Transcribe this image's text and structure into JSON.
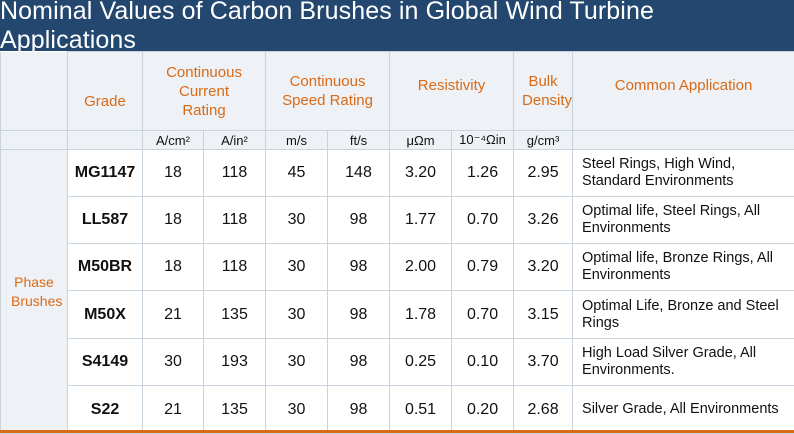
{
  "title": "Nominal Values of Carbon Brushes in Global Wind Turbine Applications",
  "headers": {
    "grade": "Grade",
    "current": "Continuous Current Rating",
    "speed": "Continuous Speed Rating",
    "resistivity": "Resistivity",
    "density": "Bulk Density",
    "application": "Common Application"
  },
  "units": [
    "A/cm²",
    "A/in²",
    "m/s",
    "ft/s",
    "μΩm",
    "10⁻⁴Ωin",
    "g/cm³"
  ],
  "row_group_label": "Phase Brushes",
  "rows": [
    {
      "grade": "MG1147",
      "a_cm2": "18",
      "a_in2": "118",
      "m_s": "45",
      "ft_s": "148",
      "uohm_m": "3.20",
      "ohm_in": "1.26",
      "density": "2.95",
      "application": "Steel Rings, High Wind, Standard Environments"
    },
    {
      "grade": "LL587",
      "a_cm2": "18",
      "a_in2": "118",
      "m_s": "30",
      "ft_s": "98",
      "uohm_m": "1.77",
      "ohm_in": "0.70",
      "density": "3.26",
      "application": "Optimal life, Steel Rings, All Environments"
    },
    {
      "grade": "M50BR",
      "a_cm2": "18",
      "a_in2": "118",
      "m_s": "30",
      "ft_s": "98",
      "uohm_m": "2.00",
      "ohm_in": "0.79",
      "density": "3.20",
      "application": "Optimal life, Bronze Rings, All Environments"
    },
    {
      "grade": "M50X",
      "a_cm2": "21",
      "a_in2": "135",
      "m_s": "30",
      "ft_s": "98",
      "uohm_m": "1.78",
      "ohm_in": "0.70",
      "density": "3.15",
      "application": "Optimal Life, Bronze and Steel Rings"
    },
    {
      "grade": "S4149",
      "a_cm2": "30",
      "a_in2": "193",
      "m_s": "30",
      "ft_s": "98",
      "uohm_m": "0.25",
      "ohm_in": "0.10",
      "density": "3.70",
      "application": "High Load Silver Grade, All Environments."
    },
    {
      "grade": "S22",
      "a_cm2": "21",
      "a_in2": "135",
      "m_s": "30",
      "ft_s": "98",
      "uohm_m": "0.51",
      "ohm_in": "0.20",
      "density": "2.68",
      "application": "Silver Grade, All Environments"
    }
  ],
  "colors": {
    "title_bg": "#23476e",
    "accent": "#d96a17",
    "header_bg": "#eef1f5"
  }
}
